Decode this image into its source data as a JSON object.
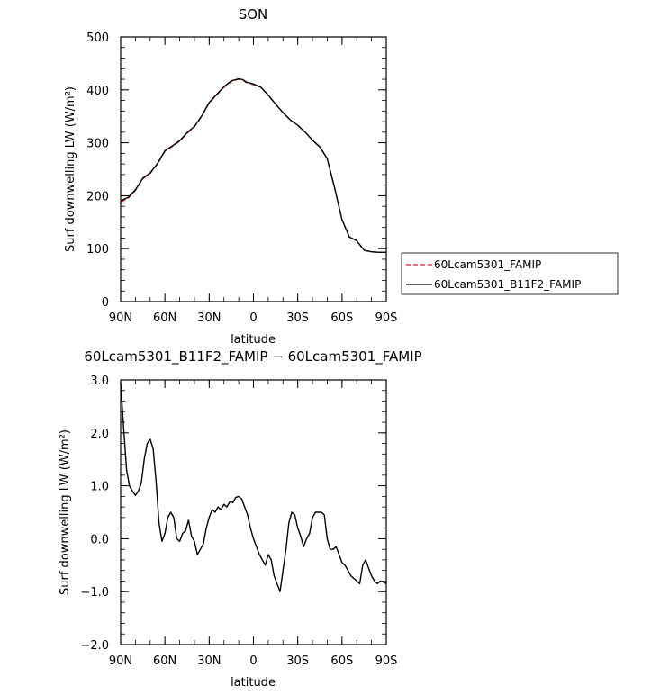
{
  "chart_data": [
    {
      "type": "line",
      "title": "SON",
      "xlabel": "latitude",
      "ylabel": "Surf downwelling LW (W/m²)",
      "xlim": [
        -90,
        90
      ],
      "x_ticks": [
        "90N",
        "60N",
        "30N",
        "0",
        "30S",
        "60S",
        "90S"
      ],
      "ylim": [
        0,
        500
      ],
      "y_ticks": [
        "0",
        "100",
        "200",
        "300",
        "400",
        "500"
      ],
      "legend": {
        "placement": "outside-right",
        "entries": [
          "60Lcam5301_FAMIP",
          "60Lcam5301_B11F2_FAMIP"
        ]
      },
      "x": [
        -90,
        -85,
        -80,
        -75,
        -70,
        -65,
        -60,
        -55,
        -50,
        -45,
        -40,
        -35,
        -30,
        -25,
        -20,
        -15,
        -10,
        -7,
        -5,
        0,
        5,
        10,
        15,
        20,
        25,
        30,
        35,
        40,
        45,
        50,
        55,
        60,
        65,
        70,
        75,
        80,
        85,
        88,
        90
      ],
      "series": [
        {
          "name": "60Lcam5301_FAMIP",
          "color": "#d42020",
          "style": "dashed",
          "values": [
            188,
            195,
            210,
            232,
            242,
            260,
            284,
            293,
            303,
            318,
            330,
            350,
            375,
            390,
            405,
            416,
            420,
            418,
            414,
            410,
            405,
            390,
            373,
            357,
            343,
            333,
            320,
            305,
            292,
            270,
            215,
            155,
            122,
            115,
            97,
            94,
            93,
            93,
            93
          ]
        },
        {
          "name": "60Lcam5301_B11F2_FAMIP",
          "color": "#000000",
          "style": "solid",
          "values": [
            190,
            197,
            211,
            233,
            243,
            261,
            285,
            294,
            304,
            319,
            331,
            351,
            376,
            391,
            406,
            417,
            421,
            419,
            415,
            411,
            405,
            390,
            373,
            357,
            343,
            333,
            320,
            305,
            292,
            270,
            215,
            155,
            122,
            115,
            97,
            94,
            93,
            93,
            93
          ]
        }
      ]
    },
    {
      "type": "line",
      "title": "60Lcam5301_B11F2_FAMIP − 60Lcam5301_FAMIP",
      "xlabel": "latitude",
      "ylabel": "Surf downwelling LW (W/m²)",
      "xlim": [
        -90,
        90
      ],
      "x_ticks": [
        "90N",
        "60N",
        "30N",
        "0",
        "30S",
        "60S",
        "90S"
      ],
      "ylim": [
        -2.0,
        3.0
      ],
      "y_ticks": [
        "−2.0",
        "−1.0",
        "0.0",
        "1.0",
        "2.0",
        "3.0"
      ],
      "x": [
        -90,
        -88,
        -86,
        -84,
        -82,
        -80,
        -78,
        -76,
        -74,
        -72,
        -70,
        -68,
        -66,
        -64,
        -62,
        -60,
        -58,
        -56,
        -54,
        -52,
        -50,
        -48,
        -46,
        -44,
        -42,
        -40,
        -38,
        -36,
        -34,
        -32,
        -30,
        -28,
        -26,
        -24,
        -22,
        -20,
        -18,
        -16,
        -14,
        -12,
        -10,
        -8,
        -6,
        -4,
        -2,
        0,
        2,
        4,
        6,
        8,
        10,
        12,
        14,
        16,
        18,
        20,
        22,
        24,
        26,
        28,
        30,
        32,
        34,
        36,
        38,
        40,
        42,
        44,
        46,
        48,
        50,
        52,
        54,
        56,
        58,
        60,
        62,
        64,
        66,
        68,
        70,
        72,
        74,
        76,
        78,
        80,
        82,
        84,
        86,
        88,
        90
      ],
      "series": [
        {
          "name": "",
          "color": "#000000",
          "style": "solid",
          "values": [
            2.95,
            2.1,
            1.3,
            1.0,
            0.9,
            0.82,
            0.9,
            1.05,
            1.5,
            1.8,
            1.88,
            1.7,
            1.1,
            0.3,
            -0.05,
            0.1,
            0.4,
            0.5,
            0.4,
            0.0,
            -0.05,
            0.1,
            0.15,
            0.35,
            0.05,
            -0.05,
            -0.3,
            -0.2,
            -0.1,
            0.2,
            0.4,
            0.55,
            0.5,
            0.6,
            0.55,
            0.65,
            0.6,
            0.7,
            0.68,
            0.78,
            0.8,
            0.75,
            0.6,
            0.45,
            0.2,
            0.0,
            -0.15,
            -0.3,
            -0.4,
            -0.5,
            -0.3,
            -0.4,
            -0.7,
            -0.85,
            -1.0,
            -0.6,
            -0.2,
            0.3,
            0.5,
            0.45,
            0.2,
            0.05,
            -0.15,
            0.0,
            0.1,
            0.4,
            0.5,
            0.5,
            0.5,
            0.45,
            0.0,
            -0.2,
            -0.2,
            -0.15,
            -0.3,
            -0.45,
            -0.5,
            -0.6,
            -0.7,
            -0.75,
            -0.8,
            -0.85,
            -0.5,
            -0.4,
            -0.55,
            -0.7,
            -0.8,
            -0.85,
            -0.8,
            -0.82,
            -0.85
          ]
        }
      ]
    }
  ]
}
